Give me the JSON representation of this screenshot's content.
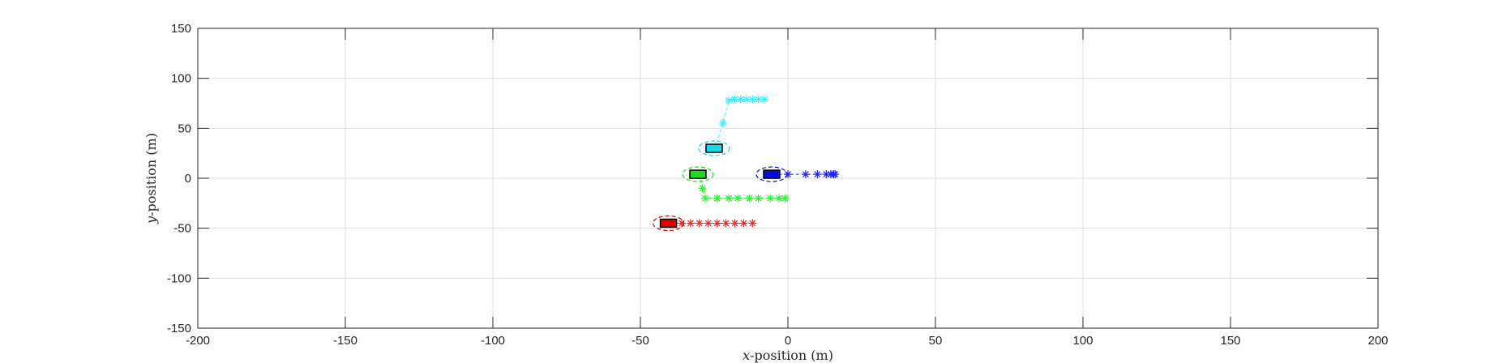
{
  "chart_data": {
    "type": "scatter",
    "title": "",
    "xlabel_var": "x",
    "xlabel_rest": "-position (m)",
    "ylabel_var": "y",
    "ylabel_rest": "-position (m)",
    "xlim": [
      -200,
      200
    ],
    "ylim": [
      -150,
      150
    ],
    "xticks": [
      -200,
      -150,
      -100,
      -50,
      0,
      50,
      100,
      150,
      200
    ],
    "yticks": [
      -150,
      -100,
      -50,
      0,
      50,
      100,
      150
    ],
    "xtick_labels": [
      "-200",
      "-150",
      "-100",
      "-50",
      "0",
      "50",
      "100",
      "150",
      "200"
    ],
    "ytick_labels": [
      "-150",
      "-100",
      "-50",
      "0",
      "50",
      "100",
      "150"
    ],
    "grid": true,
    "legend": "none",
    "vehicles": [
      {
        "color": "#e00000",
        "marker_color": "#ff2020",
        "position": [
          -40.5,
          -45
        ],
        "trajectory": [
          [
            -40,
            -45
          ],
          [
            -36,
            -45
          ],
          [
            -33,
            -45
          ],
          [
            -30,
            -45
          ],
          [
            -27,
            -45
          ],
          [
            -24,
            -45
          ],
          [
            -21,
            -45
          ],
          [
            -18,
            -45
          ],
          [
            -15,
            -45
          ],
          [
            -12,
            -45
          ]
        ]
      },
      {
        "color": "#1fd81f",
        "marker_color": "#33ee33",
        "position": [
          -30.5,
          4
        ],
        "trajectory": [
          [
            -30,
            4
          ],
          [
            -29,
            -10
          ],
          [
            -28,
            -20
          ],
          [
            -24,
            -20
          ],
          [
            -20,
            -20
          ],
          [
            -17,
            -20
          ],
          [
            -13,
            -20
          ],
          [
            -10,
            -20
          ],
          [
            -6,
            -20
          ],
          [
            -3,
            -20
          ],
          [
            -1,
            -20
          ]
        ]
      },
      {
        "color": "#0a0ad8",
        "marker_color": "#2020ff",
        "position": [
          -5.5,
          4
        ],
        "trajectory": [
          [
            -5,
            4
          ],
          [
            0,
            4
          ],
          [
            6,
            4
          ],
          [
            10,
            4
          ],
          [
            13,
            4
          ],
          [
            14.5,
            4
          ],
          [
            15.5,
            4
          ],
          [
            16,
            4
          ]
        ]
      },
      {
        "color": "#18d8e8",
        "marker_color": "#33f0ff",
        "position": [
          -25,
          30
        ],
        "trajectory": [
          [
            -25,
            30
          ],
          [
            -22,
            55
          ],
          [
            -20,
            78
          ],
          [
            -18,
            79
          ],
          [
            -16,
            79
          ],
          [
            -14,
            79
          ],
          [
            -12,
            79
          ],
          [
            -10,
            79
          ],
          [
            -8,
            79
          ]
        ]
      }
    ]
  }
}
